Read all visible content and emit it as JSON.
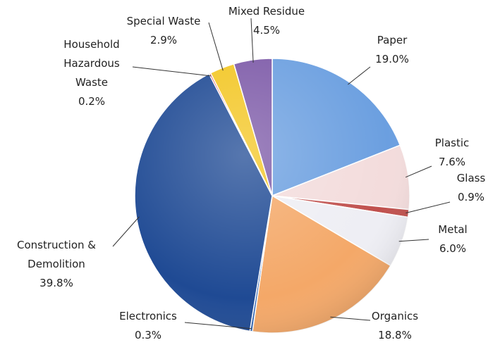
{
  "chart_data": {
    "type": "pie",
    "categories": [
      "Paper",
      "Plastic",
      "Glass",
      "Metal",
      "Organics",
      "Electronics",
      "Construction & Demolition",
      "Household Hazardous Waste",
      "Special Waste",
      "Mixed Residue"
    ],
    "values": [
      19.0,
      7.6,
      0.9,
      6.0,
      18.8,
      0.3,
      39.8,
      0.2,
      2.9,
      4.5
    ],
    "value_labels": [
      "19.0%",
      "7.6%",
      "0.9%",
      "6.0%",
      "18.8%",
      "0.3%",
      "39.8%",
      "0.2%",
      "2.9%",
      "4.5%"
    ],
    "colors": [
      "#6b9fe0",
      "#f3dcdc",
      "#c0504d",
      "#eeeef4",
      "#f4a868",
      "#2b5fb0",
      "#1f4a94",
      "#d24b48",
      "#f3c623",
      "#7d5aa8"
    ]
  }
}
